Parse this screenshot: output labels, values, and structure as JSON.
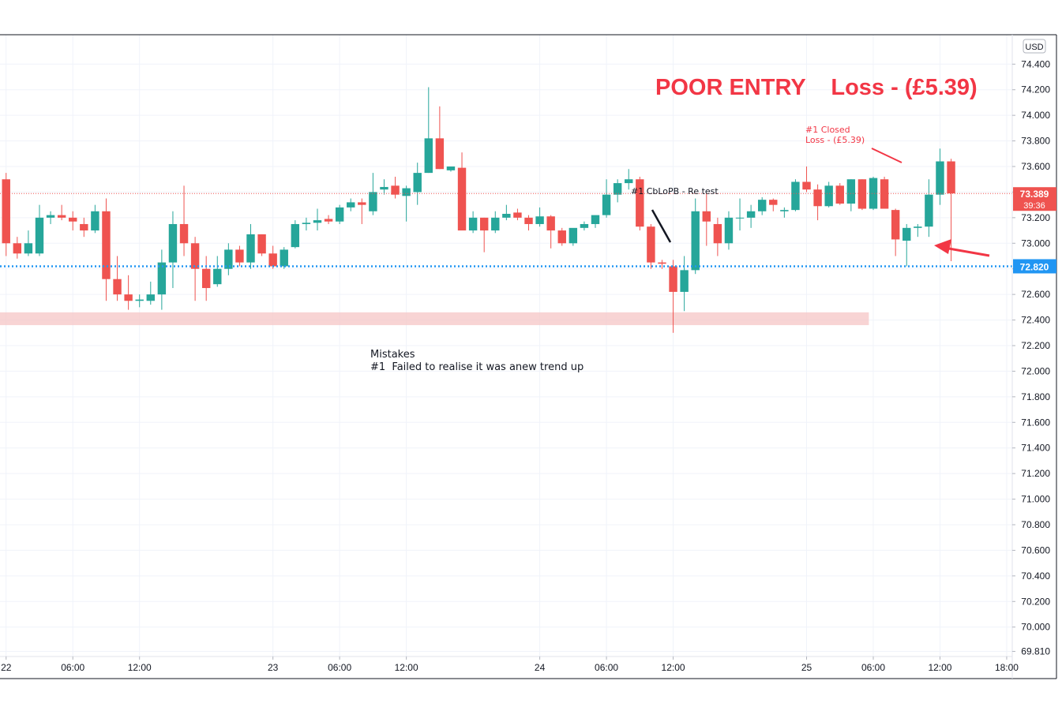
{
  "chart_data": {
    "type": "candlestick",
    "currency": "USD",
    "y_axis": {
      "ticks": [
        74.4,
        74.2,
        74.0,
        73.8,
        73.6,
        73.4,
        73.2,
        73.0,
        72.8,
        72.6,
        72.4,
        72.2,
        72.0,
        71.8,
        71.6,
        71.4,
        71.2,
        71.0,
        70.8,
        70.6,
        70.4,
        70.2,
        70.0,
        69.81
      ],
      "tick_labels": [
        "74.400",
        "74.200",
        "74.000",
        "73.800",
        "73.600",
        "73.400",
        "73.200",
        "73.000",
        "72.800",
        "72.600",
        "72.400",
        "72.200",
        "72.000",
        "71.800",
        "71.600",
        "71.400",
        "71.200",
        "71.000",
        "70.800",
        "70.600",
        "70.400",
        "70.200",
        "70.000",
        "69.810"
      ],
      "range": [
        69.77,
        74.63
      ]
    },
    "x_axis": {
      "ticks": [
        {
          "label": "22",
          "bar": 0
        },
        {
          "label": "06:00",
          "bar": 6
        },
        {
          "label": "12:00",
          "bar": 12
        },
        {
          "label": "23",
          "bar": 24
        },
        {
          "label": "06:00",
          "bar": 30
        },
        {
          "label": "12:00",
          "bar": 36
        },
        {
          "label": "24",
          "bar": 48
        },
        {
          "label": "06:00",
          "bar": 54
        },
        {
          "label": "12:00",
          "bar": 60
        },
        {
          "label": "25",
          "bar": 72
        },
        {
          "label": "06:00",
          "bar": 78
        },
        {
          "label": "12:00",
          "bar": 84
        },
        {
          "label": "18:00",
          "bar": 90
        }
      ],
      "bar_range": [
        -0.55,
        90.5
      ]
    },
    "candles": [
      {
        "o": 73.5,
        "h": 73.55,
        "l": 72.9,
        "c": 73.0
      },
      {
        "o": 73.0,
        "h": 73.05,
        "l": 72.88,
        "c": 72.92
      },
      {
        "o": 72.92,
        "h": 73.1,
        "l": 72.9,
        "c": 73.0
      },
      {
        "o": 72.92,
        "h": 73.3,
        "l": 72.9,
        "c": 73.2
      },
      {
        "o": 73.2,
        "h": 73.25,
        "l": 73.15,
        "c": 73.22
      },
      {
        "o": 73.22,
        "h": 73.3,
        "l": 73.18,
        "c": 73.2
      },
      {
        "o": 73.2,
        "h": 73.25,
        "l": 73.1,
        "c": 73.17
      },
      {
        "o": 73.15,
        "h": 73.2,
        "l": 73.05,
        "c": 73.1
      },
      {
        "o": 73.1,
        "h": 73.3,
        "l": 73.08,
        "c": 73.25
      },
      {
        "o": 73.25,
        "h": 73.35,
        "l": 72.55,
        "c": 72.72
      },
      {
        "o": 72.72,
        "h": 72.9,
        "l": 72.55,
        "c": 72.6
      },
      {
        "o": 72.6,
        "h": 72.75,
        "l": 72.48,
        "c": 72.55
      },
      {
        "o": 72.55,
        "h": 72.6,
        "l": 72.5,
        "c": 72.56
      },
      {
        "o": 72.55,
        "h": 72.7,
        "l": 72.52,
        "c": 72.6
      },
      {
        "o": 72.6,
        "h": 72.95,
        "l": 72.48,
        "c": 72.85
      },
      {
        "o": 72.85,
        "h": 73.25,
        "l": 72.65,
        "c": 73.15
      },
      {
        "o": 73.15,
        "h": 73.45,
        "l": 72.9,
        "c": 73.0
      },
      {
        "o": 73.0,
        "h": 73.05,
        "l": 72.55,
        "c": 72.8
      },
      {
        "o": 72.8,
        "h": 72.9,
        "l": 72.55,
        "c": 72.65
      },
      {
        "o": 72.68,
        "h": 72.9,
        "l": 72.66,
        "c": 72.8
      },
      {
        "o": 72.8,
        "h": 73.0,
        "l": 72.75,
        "c": 72.95
      },
      {
        "o": 72.95,
        "h": 72.98,
        "l": 72.82,
        "c": 72.85
      },
      {
        "o": 72.85,
        "h": 73.15,
        "l": 72.8,
        "c": 73.07
      },
      {
        "o": 73.07,
        "h": 73.07,
        "l": 72.9,
        "c": 72.92
      },
      {
        "o": 72.92,
        "h": 72.98,
        "l": 72.8,
        "c": 72.82
      },
      {
        "o": 72.82,
        "h": 72.97,
        "l": 72.8,
        "c": 72.95
      },
      {
        "o": 72.97,
        "h": 73.18,
        "l": 72.96,
        "c": 73.15
      },
      {
        "o": 73.15,
        "h": 73.2,
        "l": 73.1,
        "c": 73.16
      },
      {
        "o": 73.16,
        "h": 73.27,
        "l": 73.1,
        "c": 73.18
      },
      {
        "o": 73.19,
        "h": 73.22,
        "l": 73.15,
        "c": 73.17
      },
      {
        "o": 73.17,
        "h": 73.3,
        "l": 73.15,
        "c": 73.28
      },
      {
        "o": 73.28,
        "h": 73.35,
        "l": 73.25,
        "c": 73.32
      },
      {
        "o": 73.32,
        "h": 73.35,
        "l": 73.15,
        "c": 73.3
      },
      {
        "o": 73.25,
        "h": 73.55,
        "l": 73.22,
        "c": 73.4
      },
      {
        "o": 73.42,
        "h": 73.5,
        "l": 73.38,
        "c": 73.44
      },
      {
        "o": 73.45,
        "h": 73.52,
        "l": 73.35,
        "c": 73.38
      },
      {
        "o": 73.37,
        "h": 73.45,
        "l": 73.17,
        "c": 73.43
      },
      {
        "o": 73.4,
        "h": 73.63,
        "l": 73.3,
        "c": 73.55
      },
      {
        "o": 73.55,
        "h": 74.22,
        "l": 73.55,
        "c": 73.82
      },
      {
        "o": 73.82,
        "h": 74.07,
        "l": 73.58,
        "c": 73.58
      },
      {
        "o": 73.57,
        "h": 73.6,
        "l": 73.56,
        "c": 73.6
      },
      {
        "o": 73.59,
        "h": 73.71,
        "l": 73.12,
        "c": 73.1
      },
      {
        "o": 73.1,
        "h": 73.25,
        "l": 73.08,
        "c": 73.2
      },
      {
        "o": 73.2,
        "h": 73.2,
        "l": 72.93,
        "c": 73.1
      },
      {
        "o": 73.1,
        "h": 73.25,
        "l": 73.08,
        "c": 73.2
      },
      {
        "o": 73.2,
        "h": 73.3,
        "l": 73.18,
        "c": 73.23
      },
      {
        "o": 73.24,
        "h": 73.27,
        "l": 73.18,
        "c": 73.2
      },
      {
        "o": 73.2,
        "h": 73.22,
        "l": 73.1,
        "c": 73.15
      },
      {
        "o": 73.15,
        "h": 73.28,
        "l": 73.13,
        "c": 73.21
      },
      {
        "o": 73.21,
        "h": 73.22,
        "l": 72.96,
        "c": 73.1
      },
      {
        "o": 73.1,
        "h": 73.12,
        "l": 72.98,
        "c": 73.0
      },
      {
        "o": 73.0,
        "h": 73.1,
        "l": 72.98,
        "c": 73.12
      },
      {
        "o": 73.12,
        "h": 73.17,
        "l": 73.1,
        "c": 73.15
      },
      {
        "o": 73.15,
        "h": 73.2,
        "l": 73.12,
        "c": 73.22
      },
      {
        "o": 73.22,
        "h": 73.5,
        "l": 73.2,
        "c": 73.38
      },
      {
        "o": 73.38,
        "h": 73.5,
        "l": 73.32,
        "c": 73.47
      },
      {
        "o": 73.47,
        "h": 73.58,
        "l": 73.42,
        "c": 73.5
      },
      {
        "o": 73.5,
        "h": 73.52,
        "l": 73.1,
        "c": 73.13
      },
      {
        "o": 73.13,
        "h": 73.15,
        "l": 72.8,
        "c": 72.85
      },
      {
        "o": 72.85,
        "h": 72.87,
        "l": 72.8,
        "c": 72.84
      },
      {
        "o": 72.82,
        "h": 72.87,
        "l": 72.3,
        "c": 72.62
      },
      {
        "o": 72.62,
        "h": 72.9,
        "l": 72.47,
        "c": 72.79
      },
      {
        "o": 72.79,
        "h": 73.35,
        "l": 72.76,
        "c": 73.25
      },
      {
        "o": 73.25,
        "h": 73.39,
        "l": 72.98,
        "c": 73.17
      },
      {
        "o": 73.15,
        "h": 73.2,
        "l": 72.9,
        "c": 73.0
      },
      {
        "o": 73.0,
        "h": 73.25,
        "l": 72.95,
        "c": 73.2
      },
      {
        "o": 73.2,
        "h": 73.35,
        "l": 73.1,
        "c": 73.2
      },
      {
        "o": 73.2,
        "h": 73.3,
        "l": 73.12,
        "c": 73.25
      },
      {
        "o": 73.25,
        "h": 73.36,
        "l": 73.22,
        "c": 73.34
      },
      {
        "o": 73.34,
        "h": 73.35,
        "l": 73.25,
        "c": 73.3
      },
      {
        "o": 73.25,
        "h": 73.28,
        "l": 73.2,
        "c": 73.26
      },
      {
        "o": 73.26,
        "h": 73.5,
        "l": 73.25,
        "c": 73.48
      },
      {
        "o": 73.48,
        "h": 73.6,
        "l": 73.4,
        "c": 73.42
      },
      {
        "o": 73.42,
        "h": 73.46,
        "l": 73.18,
        "c": 73.29
      },
      {
        "o": 73.29,
        "h": 73.48,
        "l": 73.28,
        "c": 73.45
      },
      {
        "o": 73.45,
        "h": 73.47,
        "l": 73.3,
        "c": 73.31
      },
      {
        "o": 73.31,
        "h": 73.5,
        "l": 73.25,
        "c": 73.5
      },
      {
        "o": 73.5,
        "h": 73.5,
        "l": 73.26,
        "c": 73.27
      },
      {
        "o": 73.27,
        "h": 73.52,
        "l": 73.26,
        "c": 73.51
      },
      {
        "o": 73.5,
        "h": 73.52,
        "l": 73.27,
        "c": 73.27
      },
      {
        "o": 73.26,
        "h": 73.27,
        "l": 72.9,
        "c": 73.03
      },
      {
        "o": 73.02,
        "h": 73.15,
        "l": 72.82,
        "c": 73.12
      },
      {
        "o": 73.12,
        "h": 73.15,
        "l": 73.05,
        "c": 73.13
      },
      {
        "o": 73.13,
        "h": 73.5,
        "l": 73.05,
        "c": 73.38
      },
      {
        "o": 73.38,
        "h": 73.74,
        "l": 73.3,
        "c": 73.64
      },
      {
        "o": 73.64,
        "h": 73.66,
        "l": 72.86,
        "c": 73.39
      }
    ],
    "colors": {
      "up": "#26a69a",
      "down": "#ef5350",
      "grid": "#f0f3fa",
      "text": "#131722",
      "price_line": "#ef5350",
      "level_line": "#2196f3",
      "zone": "#f5c6c6",
      "annotation": "#f23645"
    },
    "price_lines": [
      {
        "value": 73.389,
        "label": "73.389",
        "countdown": "39:36",
        "color": "#ef5350",
        "style": "dotted"
      },
      {
        "value": 72.82,
        "label": "72.820",
        "color": "#2196f3",
        "style": "dotted"
      }
    ],
    "zone": {
      "from": 72.36,
      "to": 72.46,
      "bar_start": -0.55,
      "bar_end": 77.6
    },
    "annotations": {
      "title": {
        "text": "POOR ENTRY    Loss - (£5.39)"
      },
      "closed": {
        "line1": "#1 Closed",
        "line2": "Loss - (£5.39)"
      },
      "entry": {
        "text": "#1 CbLoPB - Re test"
      },
      "mistakes": {
        "line1": "Mistakes",
        "line2": "#1  Failed to realise it was anew trend up"
      }
    }
  }
}
